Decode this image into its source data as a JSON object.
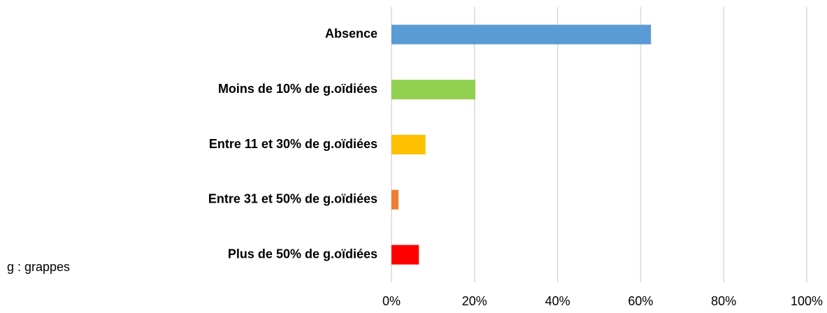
{
  "chart_data": {
    "type": "bar",
    "orientation": "horizontal",
    "categories": [
      "Absence",
      "Moins de 10% de g.oïdiées",
      "Entre 11 et 30% de g.oïdiées",
      "Entre 31 et 50% de g.oïdiées",
      "Plus de 50% de g.oïdiées"
    ],
    "values": [
      62.5,
      20.2,
      8.2,
      1.7,
      6.6
    ],
    "colors": [
      "#5b9bd5",
      "#92d050",
      "#ffc000",
      "#ed7d31",
      "#ff0000"
    ],
    "xlim": [
      0,
      100
    ],
    "xticks": [
      {
        "value": 0,
        "label": "0%"
      },
      {
        "value": 20,
        "label": "20%"
      },
      {
        "value": 40,
        "label": "40%"
      },
      {
        "value": 60,
        "label": "60%"
      },
      {
        "value": 80,
        "label": "80%"
      },
      {
        "value": 100,
        "label": "100%"
      }
    ],
    "grid": true,
    "annotation": "g : grappes"
  }
}
